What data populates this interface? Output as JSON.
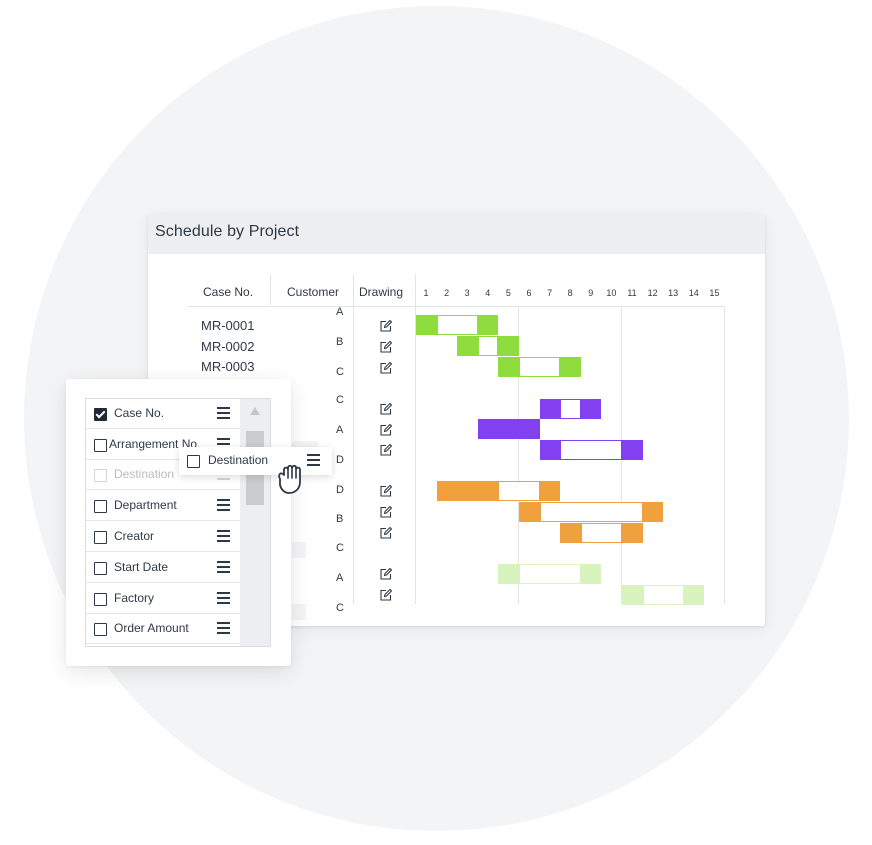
{
  "schedule": {
    "title": "Schedule by Project",
    "columns": {
      "case_no": "Case No.",
      "customer": "Customer",
      "drawing": "Drawing"
    },
    "days": [
      "1",
      "2",
      "3",
      "4",
      "5",
      "6",
      "7",
      "8",
      "9",
      "10",
      "11",
      "12",
      "13",
      "14",
      "15"
    ],
    "cases": [
      "MR-0001",
      "MR-0002",
      "MR-0003"
    ],
    "customers": [
      "A",
      "B",
      "C",
      "C",
      "A",
      "D",
      "D",
      "B",
      "C",
      "A",
      "C"
    ],
    "drawing_icon": "edit-icon",
    "colors": {
      "green": "#8edc3d",
      "purple": "#8240f0",
      "orange": "#f0a03c",
      "light_green": "#d9f3c0"
    },
    "bars": [
      {
        "color": "green",
        "segments": [
          {
            "from": 1,
            "to": 1,
            "filled": true
          },
          {
            "from": 2,
            "to": 3,
            "filled": false
          },
          {
            "from": 4,
            "to": 4,
            "filled": true
          }
        ]
      },
      {
        "color": "green",
        "segments": [
          {
            "from": 3,
            "to": 3,
            "filled": true
          },
          {
            "from": 4,
            "to": 4,
            "filled": false
          },
          {
            "from": 5,
            "to": 5,
            "filled": true
          }
        ]
      },
      {
        "color": "green",
        "segments": [
          {
            "from": 5,
            "to": 5,
            "filled": true
          },
          {
            "from": 6,
            "to": 7,
            "filled": false
          },
          {
            "from": 8,
            "to": 8,
            "filled": true
          }
        ]
      },
      {
        "color": "purple",
        "segments": [
          {
            "from": 7,
            "to": 7,
            "filled": true
          },
          {
            "from": 8,
            "to": 8,
            "filled": false
          },
          {
            "from": 9,
            "to": 9,
            "filled": true
          }
        ]
      },
      {
        "color": "purple",
        "segments": [
          {
            "from": 4,
            "to": 6,
            "filled": true
          }
        ]
      },
      {
        "color": "purple",
        "segments": [
          {
            "from": 7,
            "to": 7,
            "filled": true
          },
          {
            "from": 8,
            "to": 10,
            "filled": false
          },
          {
            "from": 11,
            "to": 11,
            "filled": true
          }
        ]
      },
      {
        "color": "orange",
        "segments": [
          {
            "from": 2,
            "to": 4,
            "filled": true
          },
          {
            "from": 5,
            "to": 6,
            "filled": false
          },
          {
            "from": 7,
            "to": 7,
            "filled": true
          }
        ]
      },
      {
        "color": "orange",
        "segments": [
          {
            "from": 6,
            "to": 6,
            "filled": true
          },
          {
            "from": 7,
            "to": 11,
            "filled": false
          },
          {
            "from": 12,
            "to": 12,
            "filled": true
          }
        ]
      },
      {
        "color": "orange",
        "segments": [
          {
            "from": 8,
            "to": 8,
            "filled": true
          },
          {
            "from": 9,
            "to": 10,
            "filled": false
          },
          {
            "from": 11,
            "to": 11,
            "filled": true
          }
        ]
      },
      {
        "color": "light_green",
        "segments": [
          {
            "from": 5,
            "to": 5,
            "filled": true
          },
          {
            "from": 6,
            "to": 8,
            "filled": false
          },
          {
            "from": 9,
            "to": 9,
            "filled": true
          }
        ]
      },
      {
        "color": "light_green",
        "segments": [
          {
            "from": 11,
            "to": 11,
            "filled": true
          },
          {
            "from": 12,
            "to": 13,
            "filled": false
          },
          {
            "from": 14,
            "to": 14,
            "filled": true
          }
        ]
      }
    ]
  },
  "column_settings": {
    "items": [
      {
        "label": "Case No.",
        "checked": true,
        "faded": false
      },
      {
        "label": "Arrangement No.",
        "checked": false,
        "faded": false
      },
      {
        "label": "Destination",
        "checked": false,
        "faded": true
      },
      {
        "label": "Department",
        "checked": false,
        "faded": false
      },
      {
        "label": "Creator",
        "checked": false,
        "faded": false
      },
      {
        "label": "Start Date",
        "checked": false,
        "faded": false
      },
      {
        "label": "Factory",
        "checked": false,
        "faded": false
      },
      {
        "label": "Order Amount",
        "checked": false,
        "faded": false
      }
    ],
    "dragging_item": {
      "label": "Destination",
      "checked": false
    },
    "cursor": "grab-hand-icon"
  }
}
